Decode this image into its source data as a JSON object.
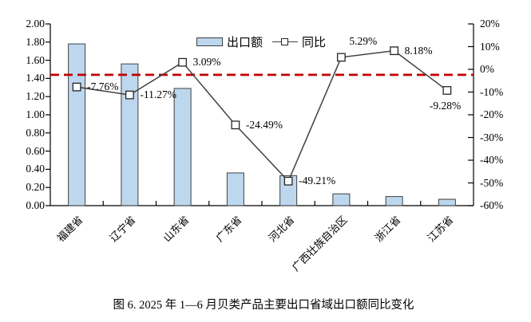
{
  "figure": {
    "caption": "图 6. 2025 年 1—6 月贝类产品主要出口省域出口额同比变化"
  },
  "legend": {
    "items": [
      {
        "label": "出口额",
        "swatch": "bar-swatch"
      },
      {
        "label": "同比",
        "swatch": "line-marker-swatch"
      }
    ]
  },
  "colors": {
    "bar_fill": "#BDD7EE",
    "bar_border": "#404040",
    "line": "#404040",
    "marker_fill": "#FFFFFF",
    "marker_border": "#262626",
    "reference_line": "#C00000",
    "axis": "#000000",
    "text": "#000000"
  },
  "chart_data": {
    "type": "bar+line combo",
    "categories": [
      "福建省",
      "辽宁省",
      "山东省",
      "广东省",
      "河北省",
      "广西壮族自治区",
      "浙江省",
      "江苏省"
    ],
    "series": [
      {
        "name": "出口额",
        "type": "bar",
        "axis": "left",
        "values": [
          1.78,
          1.56,
          1.29,
          0.36,
          0.33,
          0.13,
          0.1,
          0.07
        ]
      },
      {
        "name": "同比",
        "type": "line",
        "axis": "right",
        "values": [
          -7.76,
          -11.27,
          3.09,
          -24.49,
          -49.21,
          5.29,
          8.18,
          -9.28
        ],
        "labels": [
          "-7.76%",
          "-11.27%",
          "3.09%",
          "-24.49%",
          "-49.21%",
          "5.29%",
          "8.18%",
          "-9.28%"
        ],
        "label_placement": [
          "right",
          "right",
          "right",
          "right",
          "right",
          "above",
          "right",
          "below"
        ]
      }
    ],
    "left_axis": {
      "min": 0,
      "max": 2,
      "step": 0.2,
      "ticks": [
        "2.00",
        "1.80",
        "1.60",
        "1.40",
        "1.20",
        "1.00",
        "0.80",
        "0.60",
        "0.40",
        "0.20",
        "0.00"
      ]
    },
    "right_axis": {
      "min": -60,
      "max": 20,
      "step": 10,
      "ticks": [
        "20%",
        "10%",
        "0%",
        "-10%",
        "-20%",
        "-30%",
        "-40%",
        "-50%",
        "-60%"
      ]
    },
    "reference_line_pct": -2.4,
    "grid": false,
    "legend_position": "top-center-inside"
  }
}
